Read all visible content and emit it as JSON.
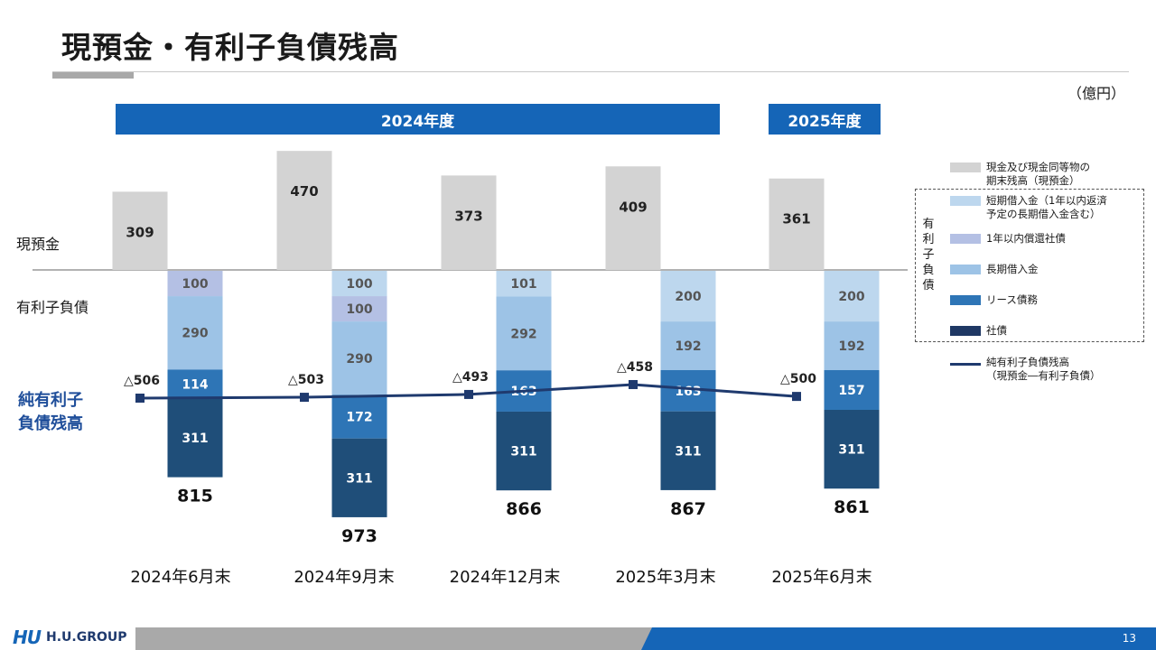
{
  "title": "現預金・有利子負債残高",
  "unit": "（億円）",
  "fiscal_years": [
    {
      "label": "2024年度"
    },
    {
      "label": "2025年度"
    }
  ],
  "row_labels": {
    "cash": "現預金",
    "debt": "有利子負債",
    "net_line1": "純有利子",
    "net_line2": "負債残高"
  },
  "legend": {
    "debt_group_title": "有利子負債",
    "items": [
      {
        "label_line1": "現金及び現金同等物の",
        "label_line2": "期末残高（現預金）",
        "color": "#d3d3d3"
      },
      {
        "label_line1": "短期借入金（1年以内返済",
        "label_line2": "予定の長期借入金含む）",
        "color": "#bdd7ee"
      },
      {
        "label_line1": "1年以内償還社債",
        "label_line2": "",
        "color": "#b4c0e4"
      },
      {
        "label_line1": "長期借入金",
        "label_line2": "",
        "color": "#9dc3e6"
      },
      {
        "label_line1": "リース債務",
        "label_line2": "",
        "color": "#2e75b6"
      },
      {
        "label_line1": "社債",
        "label_line2": "",
        "color": "#1f3864"
      }
    ],
    "line_item": {
      "label_line1": "純有利子負債残高",
      "label_line2": "（現預金―有利子負債）",
      "color": "#1f3a6e"
    }
  },
  "chart_data": {
    "type": "bar",
    "categories": [
      "2024年6月末",
      "2024年9月末",
      "2024年12月末",
      "2025年3月末",
      "2025年6月末"
    ],
    "cash": {
      "name": "現金及び現金同等物の期末残高（現預金）",
      "values": [
        309,
        470,
        373,
        409,
        361
      ],
      "color": "#d3d3d3"
    },
    "debt_series": [
      {
        "name": "社債",
        "values": [
          311,
          311,
          311,
          311,
          311
        ],
        "color": "#1f4e79",
        "label_color": "#ffffff"
      },
      {
        "name": "リース債務",
        "values": [
          114,
          172,
          163,
          163,
          157
        ],
        "color": "#2e75b6",
        "label_color": "#ffffff"
      },
      {
        "name": "長期借入金",
        "values": [
          290,
          290,
          292,
          192,
          192
        ],
        "color": "#9dc3e6",
        "label_color": "#555555"
      },
      {
        "name": "1年以内償還社債",
        "values": [
          100,
          100,
          0,
          0,
          0
        ],
        "color": "#b4c0e4",
        "label_color": "#555555"
      },
      {
        "name": "短期借入金（1年以内返済予定の長期借入金含む）",
        "values": [
          0,
          100,
          101,
          200,
          200
        ],
        "color": "#bdd7ee",
        "label_color": "#555555"
      }
    ],
    "debt_totals": [
      815,
      973,
      866,
      867,
      861
    ],
    "net_debt": {
      "name": "純有利子負債残高（現預金―有利子負債）",
      "values": [
        -506,
        -503,
        -493,
        -458,
        -500
      ],
      "labels": [
        "△506",
        "△503",
        "△493",
        "△458",
        "△500"
      ],
      "color": "#1f3a6e"
    }
  },
  "footer": {
    "brand": "H.U.GROUP",
    "logo_mark": "HU",
    "page": "13"
  }
}
